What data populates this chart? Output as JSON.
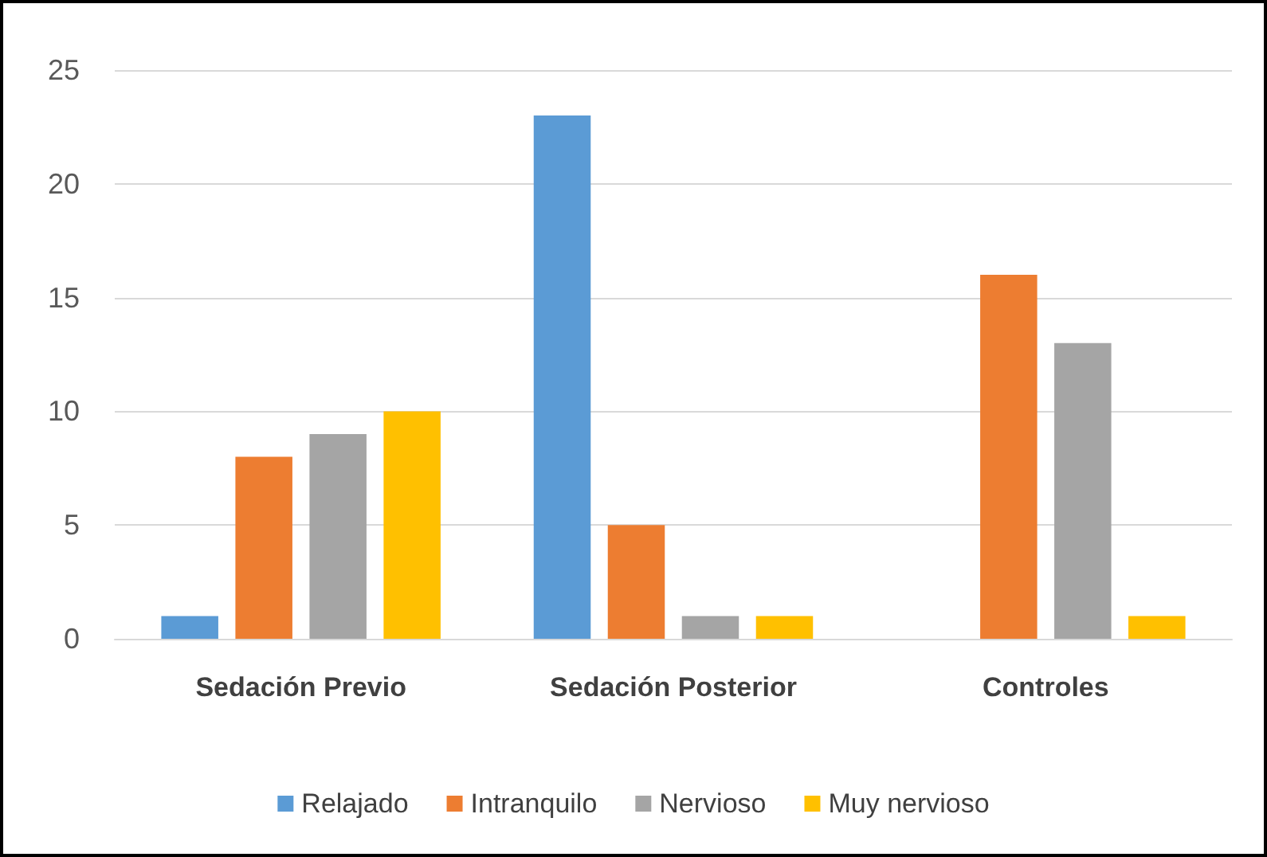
{
  "chart_data": {
    "type": "bar",
    "categories": [
      "Sedación Previo",
      "Sedación Posterior",
      "Controles"
    ],
    "series": [
      {
        "name": "Relajado",
        "color": "#5b9bd5",
        "values": [
          1,
          23,
          0
        ]
      },
      {
        "name": "Intranquilo",
        "color": "#ed7d31",
        "values": [
          8,
          5,
          16
        ]
      },
      {
        "name": "Nervioso",
        "color": "#a5a5a5",
        "values": [
          9,
          1,
          13
        ]
      },
      {
        "name": "Muy nervioso",
        "color": "#ffc000",
        "values": [
          10,
          1,
          1
        ]
      }
    ],
    "ylim": [
      0,
      25
    ],
    "yticks": [
      0,
      5,
      10,
      15,
      20,
      25
    ],
    "grid": "y",
    "legend": "bottom"
  }
}
